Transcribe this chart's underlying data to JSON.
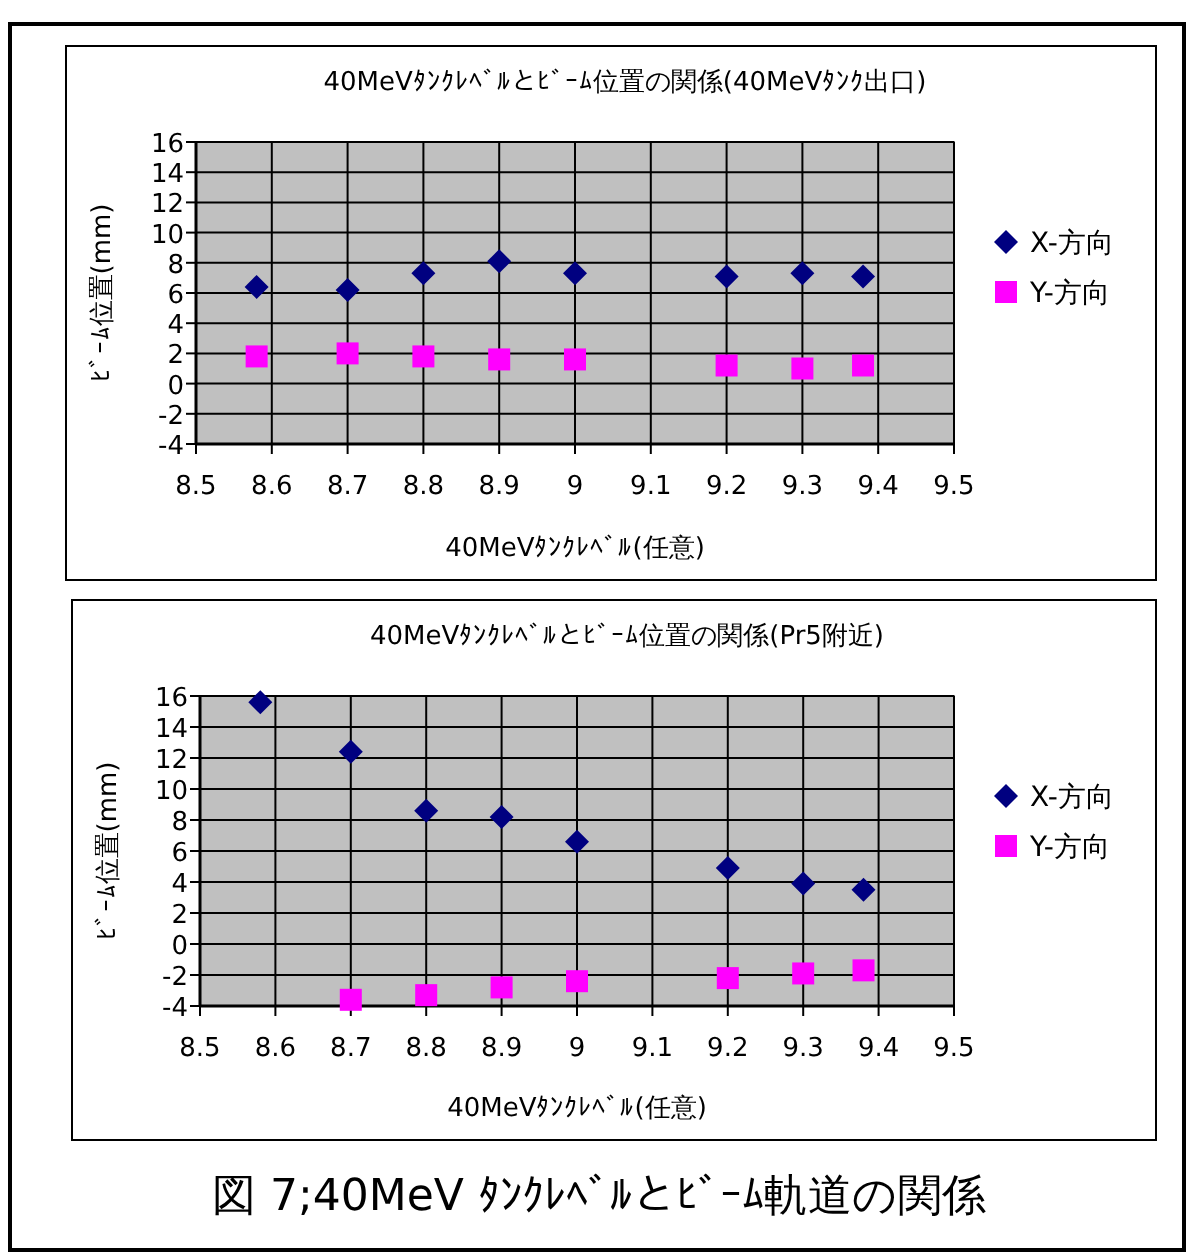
{
  "chart_data": [
    {
      "type": "scatter",
      "title": "40MeVﾀﾝｸﾚﾍﾞﾙとﾋﾞｰﾑ位置の関係(40MeVﾀﾝｸ出口)",
      "xlabel": "40MeVﾀﾝｸﾚﾍﾞﾙ(任意)",
      "ylabel": "ﾋﾞｰﾑ位置(mm)",
      "xlim": [
        8.5,
        9.5
      ],
      "ylim": [
        -4,
        16
      ],
      "xticks": [
        8.5,
        8.6,
        8.7,
        8.8,
        8.9,
        9,
        9.1,
        9.2,
        9.3,
        9.4,
        9.5
      ],
      "yticks": [
        -4,
        -2,
        0,
        2,
        4,
        6,
        8,
        10,
        12,
        14,
        16
      ],
      "grid": true,
      "legend": "right",
      "series": [
        {
          "name": "X-方向",
          "color": "#000080",
          "marker": "diamond",
          "x": [
            8.58,
            8.7,
            8.8,
            8.9,
            9,
            9.2,
            9.3,
            9.38
          ],
          "values": [
            6.4,
            6.2,
            7.3,
            8.1,
            7.3,
            7.1,
            7.3,
            7.1
          ]
        },
        {
          "name": "Y-方向",
          "color": "#ff00ff",
          "marker": "square",
          "x": [
            8.58,
            8.7,
            8.8,
            8.9,
            9,
            9.2,
            9.3,
            9.38
          ],
          "values": [
            1.8,
            2.0,
            1.8,
            1.6,
            1.6,
            1.2,
            1.0,
            1.2
          ]
        }
      ]
    },
    {
      "type": "scatter",
      "title": "40MeVﾀﾝｸﾚﾍﾞﾙとﾋﾞｰﾑ位置の関係(Pr5附近)",
      "xlabel": "40MeVﾀﾝｸﾚﾍﾞﾙ(任意)",
      "ylabel": "ﾋﾞｰﾑ位置(mm)",
      "xlim": [
        8.5,
        9.5
      ],
      "ylim": [
        -4,
        16
      ],
      "xticks": [
        8.5,
        8.6,
        8.7,
        8.8,
        8.9,
        9,
        9.1,
        9.2,
        9.3,
        9.4,
        9.5
      ],
      "yticks": [
        -4,
        -2,
        0,
        2,
        4,
        6,
        8,
        10,
        12,
        14,
        16
      ],
      "grid": true,
      "legend": "right",
      "annotations": [
        "図 7;40MeV ﾀﾝｸﾚﾍﾞﾙとﾋﾞｰﾑ軌道の関係"
      ],
      "series": [
        {
          "name": "X-方向",
          "color": "#000080",
          "marker": "diamond",
          "x": [
            8.58,
            8.7,
            8.8,
            8.9,
            9,
            9.2,
            9.3,
            9.38
          ],
          "values": [
            15.6,
            12.4,
            8.6,
            8.2,
            6.6,
            4.9,
            3.9,
            3.5
          ]
        },
        {
          "name": "Y-方向",
          "color": "#ff00ff",
          "marker": "square",
          "x": [
            8.7,
            8.8,
            8.9,
            9,
            9.2,
            9.3,
            9.38
          ],
          "values": [
            -3.6,
            -3.3,
            -2.8,
            -2.4,
            -2.2,
            -1.9,
            -1.7
          ]
        }
      ]
    }
  ]
}
